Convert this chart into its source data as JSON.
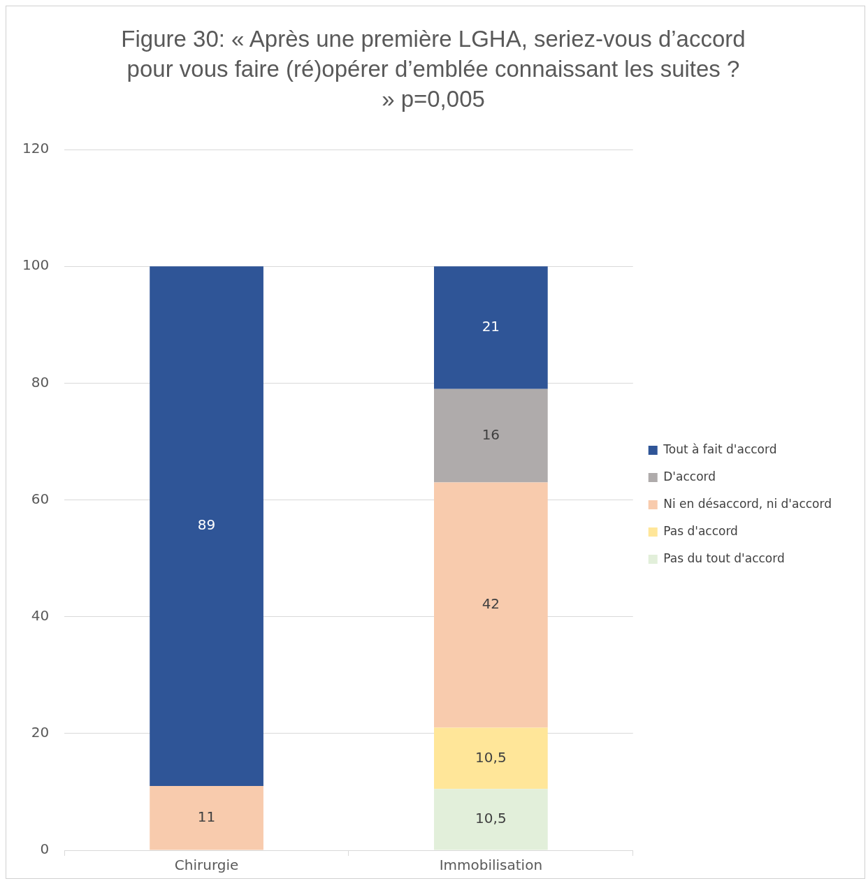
{
  "chart_data": {
    "type": "bar",
    "stacked": true,
    "title": "Figure 30: « Après une première LGHA, seriez-vous d’accord pour vous faire (ré)opérer d’emblée connaissant les suites ? »  p=0,005",
    "categories": [
      "Chirurgie",
      "Immobilisation"
    ],
    "series": [
      {
        "name": "Pas du tout d'accord",
        "color": "#e2efda",
        "values": [
          null,
          10.5
        ],
        "value_labels": [
          null,
          "10,5"
        ]
      },
      {
        "name": "Pas d'accord",
        "color": "#ffe699",
        "values": [
          null,
          10.5
        ],
        "value_labels": [
          null,
          "10,5"
        ]
      },
      {
        "name": "Ni en désaccord, ni d'accord",
        "color": "#f8cbad",
        "values": [
          11,
          42
        ],
        "value_labels": [
          "11",
          "42"
        ]
      },
      {
        "name": "D'accord",
        "color": "#afabab",
        "values": [
          null,
          16
        ],
        "value_labels": [
          null,
          "16"
        ]
      },
      {
        "name": "Tout à fait d'accord",
        "color": "#2f5597",
        "values": [
          89,
          21
        ],
        "value_labels": [
          "89",
          "21"
        ]
      }
    ],
    "ylim": [
      0,
      120
    ],
    "yticks": [
      0,
      20,
      40,
      60,
      80,
      100,
      120
    ],
    "grid": "y",
    "legend": "right"
  }
}
